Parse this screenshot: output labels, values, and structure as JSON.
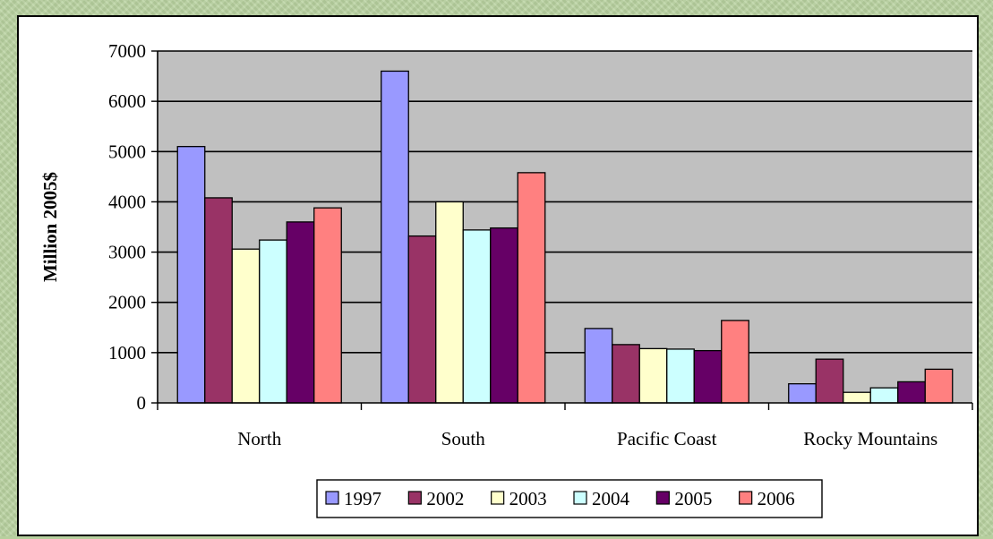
{
  "chart_data": {
    "type": "bar",
    "title": "",
    "xlabel": "",
    "ylabel": "Million 2005$",
    "ylim": [
      0,
      7000
    ],
    "yticks": [
      0,
      1000,
      2000,
      3000,
      4000,
      5000,
      6000,
      7000
    ],
    "grid": true,
    "legend_position": "bottom",
    "categories": [
      "North",
      "South",
      "Pacific Coast",
      "Rocky Mountains"
    ],
    "series": [
      {
        "name": "1997",
        "color": "#9999ff",
        "values": [
          5100,
          6600,
          1480,
          380
        ]
      },
      {
        "name": "2002",
        "color": "#993366",
        "values": [
          4080,
          3320,
          1160,
          870
        ]
      },
      {
        "name": "2003",
        "color": "#ffffcc",
        "values": [
          3060,
          4000,
          1080,
          210
        ]
      },
      {
        "name": "2004",
        "color": "#ccffff",
        "values": [
          3240,
          3440,
          1070,
          300
        ]
      },
      {
        "name": "2005",
        "color": "#660066",
        "values": [
          3600,
          3480,
          1040,
          420
        ]
      },
      {
        "name": "2006",
        "color": "#ff8080",
        "values": [
          3880,
          4580,
          1640,
          670
        ]
      }
    ],
    "plot_background": "#c0c0c0"
  }
}
